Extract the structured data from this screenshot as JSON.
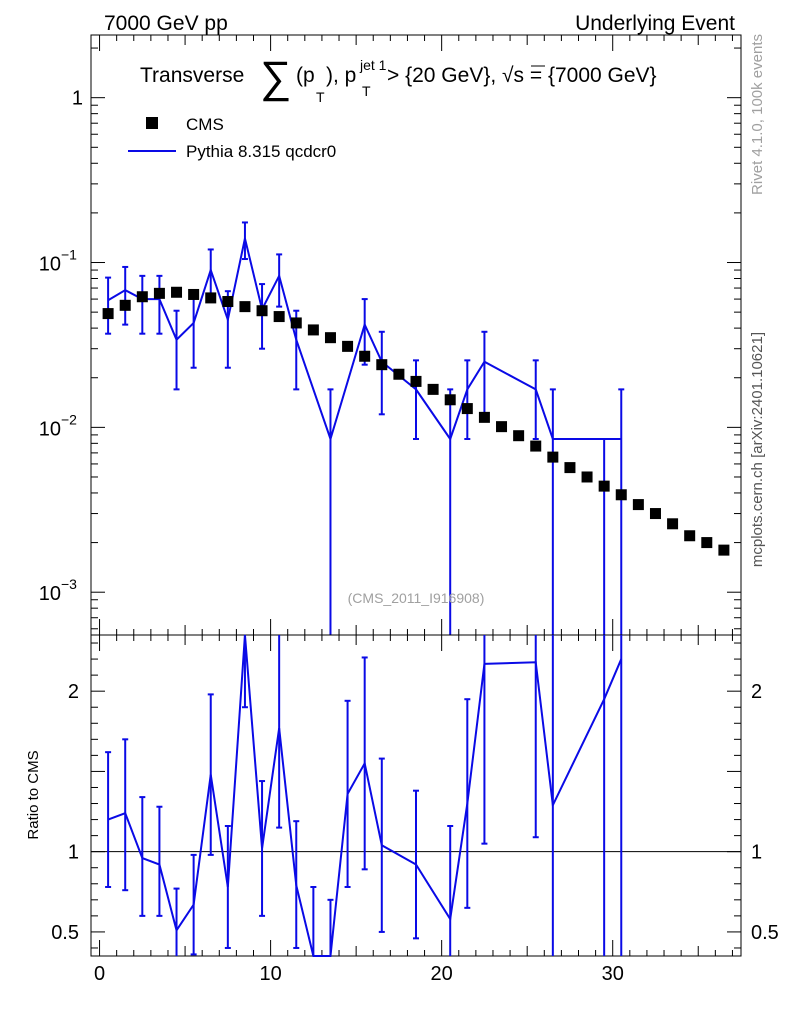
{
  "header": {
    "left": "7000 GeV pp",
    "right": "Underlying Event"
  },
  "side_labels": {
    "rivet": "Rivet 4.1.0,  100k events",
    "site": "mcplots.cern.ch [arXiv:2401.10621]"
  },
  "analysis_id": "(CMS_2011_I916908)",
  "title": {
    "pre": "Transverse ",
    "sum": "∑",
    "paren_open": "(p",
    "sub_T": "T",
    "paren_close": "), p",
    "sup_jet": "jet 1",
    "sub_T2": "T",
    "rest": " > {20 GeV}, √s = {7000 GeV}"
  },
  "legend": {
    "data_label": "CMS",
    "mc_label": "Pythia 8.315 qcdcr0"
  },
  "colors": {
    "data": "#000000",
    "mc": "#0a0ae6",
    "ref_line": "#000000",
    "axis": "#000000",
    "faint": "#a0a0a0"
  },
  "chart_data": [
    {
      "type": "scatter+line",
      "panel": "main",
      "yscale": "log",
      "xlim": [
        -0.5,
        37.5
      ],
      "ylim": [
        0.00055,
        2.4
      ],
      "x_ticks": [
        0,
        10,
        20,
        30
      ],
      "y_ticks": [
        {
          "value": 1,
          "base": "1",
          "exp": ""
        },
        {
          "value": 0.1,
          "base": "10",
          "exp": "−1"
        },
        {
          "value": 0.01,
          "base": "10",
          "exp": "−2"
        },
        {
          "value": 0.001,
          "base": "10",
          "exp": "−3"
        }
      ],
      "series": [
        {
          "name": "CMS",
          "style": "markers",
          "x": [
            0.5,
            1.5,
            2.5,
            3.5,
            4.5,
            5.5,
            6.5,
            7.5,
            8.5,
            9.5,
            10.5,
            11.5,
            12.5,
            13.5,
            14.5,
            15.5,
            16.5,
            17.5,
            18.5,
            19.5,
            20.5,
            21.5,
            22.5,
            23.5,
            24.5,
            25.5,
            26.5,
            27.5,
            28.5,
            29.5,
            30.5,
            31.5,
            32.5,
            33.5,
            34.5,
            35.5,
            36.5
          ],
          "values": [
            0.049,
            0.055,
            0.062,
            0.065,
            0.066,
            0.064,
            0.061,
            0.058,
            0.054,
            0.051,
            0.047,
            0.043,
            0.039,
            0.035,
            0.031,
            0.027,
            0.024,
            0.021,
            0.019,
            0.017,
            0.0147,
            0.013,
            0.0115,
            0.0101,
            0.0089,
            0.0077,
            0.0066,
            0.0057,
            0.005,
            0.0044,
            0.0039,
            0.0034,
            0.003,
            0.0026,
            0.0022,
            0.002,
            0.0018
          ]
        },
        {
          "name": "Pythia 8.315 qcdcr0",
          "style": "line+errorbars",
          "x": [
            0.5,
            1.5,
            2.5,
            3.5,
            4.5,
            5.5,
            6.5,
            7.5,
            8.5,
            9.5,
            10.5,
            11.5,
            13.5,
            15.5,
            16.5,
            18.5,
            20.5,
            21.5,
            22.5,
            25.5,
            26.5,
            30.5
          ],
          "values": [
            0.059,
            0.068,
            0.06,
            0.06,
            0.034,
            0.043,
            0.09,
            0.045,
            0.14,
            0.052,
            0.083,
            0.034,
            0.0085,
            0.042,
            0.025,
            0.017,
            0.0085,
            0.017,
            0.025,
            0.017,
            0.0085,
            0.0085
          ],
          "err_low": [
            0.037,
            0.042,
            0.037,
            0.037,
            0.017,
            0.023,
            0.06,
            0.023,
            0.105,
            0.03,
            0.054,
            0.017,
            1e-05,
            0.024,
            0.012,
            0.0085,
            1e-05,
            0.0085,
            0.012,
            0.0085,
            1e-05,
            1e-05
          ],
          "err_high": [
            0.081,
            0.094,
            0.083,
            0.083,
            0.051,
            0.063,
            0.12,
            0.067,
            0.175,
            0.074,
            0.112,
            0.051,
            0.017,
            0.06,
            0.038,
            0.0255,
            0.017,
            0.0255,
            0.038,
            0.0255,
            0.017,
            0.017
          ],
          "flat_extension": [
            {
              "x_from": 26.5,
              "x_to": 30.5,
              "value": 0.0085
            }
          ],
          "extra_errorbars": [
            {
              "x": 29.5,
              "low": 1e-05,
              "high": 0.0085
            }
          ]
        }
      ]
    },
    {
      "type": "line",
      "panel": "ratio",
      "ylabel": "Ratio to CMS",
      "xlim": [
        -0.5,
        37.5
      ],
      "ylim": [
        0.35,
        2.35
      ],
      "x_ticks": [
        0,
        10,
        20,
        30
      ],
      "y_ticks": [
        0.5,
        1,
        2
      ],
      "reference": 1,
      "series": [
        {
          "name": "Pythia 8.315 qcdcr0",
          "x": [
            0.5,
            1.5,
            2.5,
            3.5,
            4.5,
            5.5,
            6.5,
            7.5,
            8.5,
            9.5,
            10.5,
            11.5,
            12.5,
            13.5,
            14.5,
            15.5,
            16.5,
            18.5,
            20.5,
            21.5,
            22.5,
            25.5,
            26.5,
            29.5,
            30.5
          ],
          "values": [
            1.2,
            1.24,
            0.96,
            0.92,
            0.51,
            0.67,
            1.48,
            0.78,
            2.6,
            1.02,
            1.77,
            0.79,
            0.2,
            0.24,
            1.36,
            1.55,
            1.04,
            0.92,
            0.58,
            1.3,
            2.17,
            2.18,
            1.29,
            1.95,
            2.2
          ],
          "err_low": [
            0.78,
            0.76,
            0.6,
            0.6,
            0.26,
            0.36,
            0.98,
            0.4,
            1.9,
            0.6,
            1.15,
            0.4,
            0.0,
            0.0,
            0.78,
            0.89,
            0.5,
            0.46,
            0.0,
            0.65,
            1.05,
            1.09,
            0.0,
            0.0,
            0.0
          ],
          "err_high": [
            1.62,
            1.7,
            1.34,
            1.28,
            0.77,
            0.98,
            1.98,
            1.16,
            3.3,
            1.44,
            2.4,
            1.19,
            0.78,
            0.7,
            1.94,
            2.21,
            1.58,
            1.38,
            1.16,
            1.95,
            3.3,
            3.3,
            2.6,
            3.9,
            4.4
          ]
        }
      ]
    }
  ]
}
